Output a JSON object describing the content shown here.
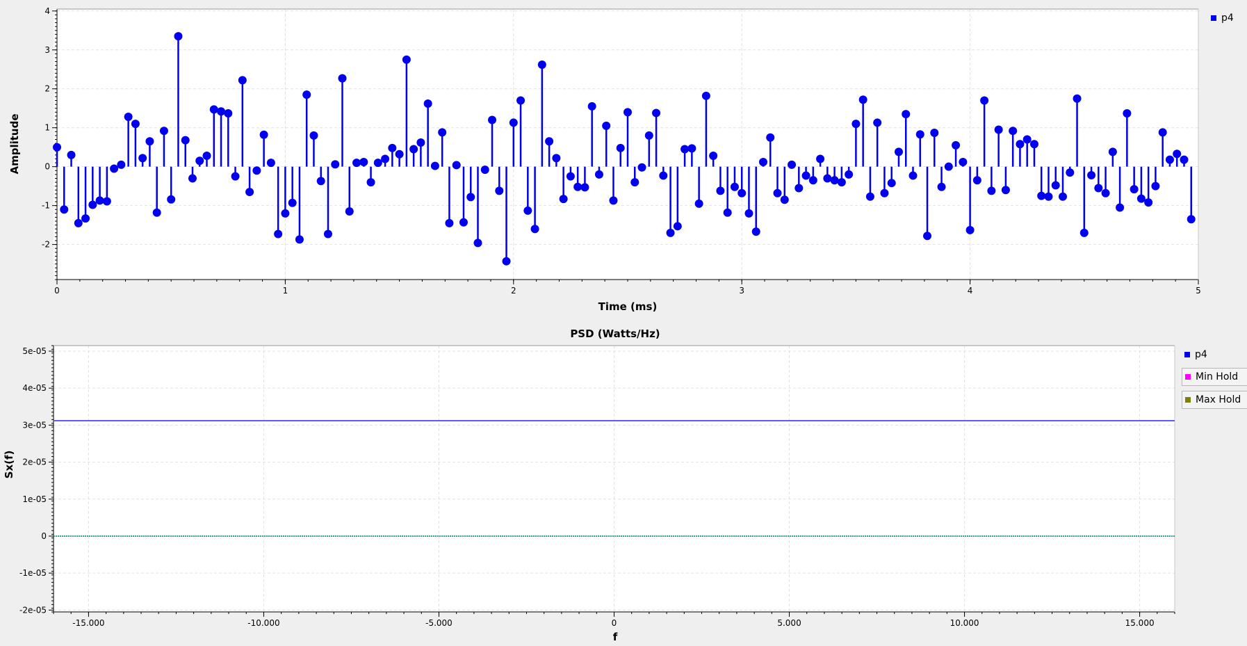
{
  "colors": {
    "stem": "#0000ee",
    "psd_line": "#5a5aff",
    "zero_line": "#1f8f8f",
    "min_hold": "#ff00ff",
    "max_hold": "#808000"
  },
  "chart_data": [
    {
      "type": "stem",
      "title": "",
      "xlabel": "Time (ms)",
      "ylabel": "Amplitude",
      "xlim": [
        0,
        5
      ],
      "ylim": [
        -2.9,
        4.05
      ],
      "x_ticks": [
        "0",
        "1",
        "2",
        "3",
        "4",
        "5"
      ],
      "y_ticks": [
        "4",
        "3",
        "2",
        "1",
        "0",
        "-1",
        "-2"
      ],
      "grid": true,
      "legend_position": "top-right",
      "series": [
        {
          "name": "p4",
          "x_start": 0,
          "x_step": 0.03125,
          "values": [
            0.5,
            -1.1,
            0.3,
            -1.45,
            -1.33,
            -0.98,
            -0.87,
            -0.89,
            -0.05,
            0.05,
            1.28,
            1.1,
            0.22,
            0.65,
            -1.18,
            0.92,
            -0.84,
            3.35,
            0.68,
            -0.3,
            0.15,
            0.28,
            1.47,
            1.42,
            1.37,
            -0.25,
            2.22,
            -0.65,
            -0.1,
            0.82,
            0.1,
            -1.73,
            -1.2,
            -0.93,
            -1.87,
            1.85,
            0.8,
            -0.37,
            -1.73,
            0.06,
            2.27,
            -1.15,
            0.1,
            0.12,
            -0.4,
            0.1,
            0.2,
            0.48,
            0.32,
            2.75,
            0.45,
            0.62,
            1.62,
            0.02,
            0.88,
            -1.45,
            0.04,
            -1.43,
            -0.78,
            -1.96,
            -0.08,
            1.2,
            -0.62,
            -2.43,
            1.13,
            1.7,
            -1.13,
            -1.6,
            2.62,
            0.65,
            0.22,
            -0.83,
            -0.25,
            -0.52,
            -0.53,
            1.55,
            -0.2,
            1.05,
            -0.87,
            0.48,
            1.4,
            -0.4,
            -0.02,
            0.8,
            1.38,
            -0.23,
            -1.7,
            -1.53,
            0.45,
            0.47,
            -0.95,
            1.82,
            0.28,
            -0.62,
            -1.18,
            -0.52,
            -0.68,
            -1.2,
            -1.67,
            0.12,
            0.75,
            -0.68,
            -0.85,
            0.05,
            -0.55,
            -0.23,
            -0.35,
            0.2,
            -0.3,
            -0.35,
            -0.4,
            -0.2,
            1.1,
            1.72,
            -0.77,
            1.13,
            -0.68,
            -0.42,
            0.38,
            1.35,
            -0.23,
            0.83,
            -1.78,
            0.87,
            -0.52,
            0.0,
            0.55,
            0.12,
            -1.63,
            -0.35,
            1.7,
            -0.62,
            0.95,
            -0.6,
            0.92,
            0.58,
            0.7,
            0.58,
            -0.75,
            -0.77,
            -0.48,
            -0.77,
            -0.15,
            1.75,
            -1.7,
            -0.22,
            -0.55,
            -0.68,
            0.38,
            -1.05,
            1.37,
            -0.58,
            -0.82,
            -0.92,
            -0.5,
            0.88,
            0.18,
            0.33,
            0.18,
            -1.35
          ]
        }
      ]
    },
    {
      "type": "line",
      "title": "PSD (Watts/Hz)",
      "xlabel": "f",
      "ylabel": "Sx(f)",
      "xlim": [
        -16000,
        16000
      ],
      "ylim": [
        -2.05e-05,
        5.15e-05
      ],
      "x_ticks": [
        "-15.000",
        "-10.000",
        "-5.000",
        "0",
        "5.000",
        "10.000",
        "15.000"
      ],
      "y_ticks": [
        "5e-05",
        "4e-05",
        "3e-05",
        "2e-05",
        "1e-05",
        "0",
        "-1e-05",
        "-2e-05"
      ],
      "grid": true,
      "legend_position": "right",
      "series": [
        {
          "name": "p4",
          "x": [
            -16000,
            16000
          ],
          "values": [
            3.12e-05,
            3.12e-05
          ]
        },
        {
          "name": "Min Hold",
          "x": [
            -16000,
            16000
          ],
          "values": [
            0,
            0
          ]
        },
        {
          "name": "Max Hold",
          "x": [
            -16000,
            16000
          ],
          "values": [
            0,
            0
          ]
        }
      ]
    }
  ]
}
